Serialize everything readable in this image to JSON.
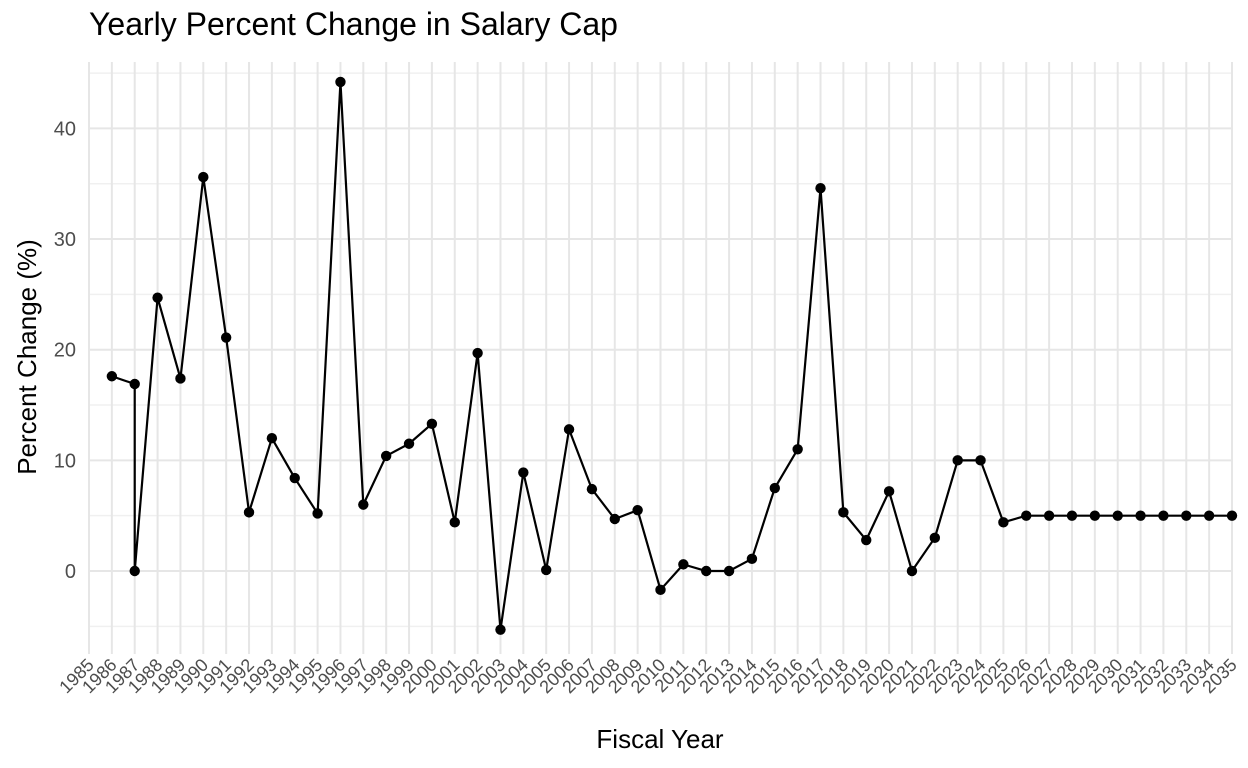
{
  "chart_data": {
    "type": "line",
    "title": "Yearly Percent Change in Salary Cap",
    "xlabel": "Fiscal Year",
    "ylabel": "Percent Change (%)",
    "x_ticks": [
      "1985",
      "1986",
      "1987",
      "1988",
      "1989",
      "1990",
      "1991",
      "1992",
      "1993",
      "1994",
      "1995",
      "1996",
      "1997",
      "1998",
      "1999",
      "2000",
      "2001",
      "2002",
      "2003",
      "2004",
      "2005",
      "2006",
      "2007",
      "2008",
      "2009",
      "2010",
      "2011",
      "2012",
      "2013",
      "2014",
      "2015",
      "2016",
      "2017",
      "2018",
      "2019",
      "2020",
      "2021",
      "2022",
      "2023",
      "2024",
      "2025",
      "2026",
      "2027",
      "2028",
      "2029",
      "2030",
      "2031",
      "2032",
      "2033",
      "2034",
      "2035"
    ],
    "y_ticks": [
      0,
      10,
      20,
      30,
      40
    ],
    "xlim": [
      1985,
      2035
    ],
    "ylim": [
      -7.5,
      46
    ],
    "grid": true,
    "line_color": "#000000",
    "series": [
      {
        "points": [
          [
            1986,
            17.6
          ],
          [
            1987,
            16.9
          ],
          [
            1987,
            0
          ],
          [
            1988,
            24.7
          ],
          [
            1989,
            17.4
          ],
          [
            1990,
            35.6
          ],
          [
            1991,
            21.1
          ],
          [
            1992,
            5.3
          ],
          [
            1993,
            12.0
          ],
          [
            1994,
            8.4
          ],
          [
            1995,
            5.2
          ],
          [
            1996,
            44.2
          ],
          [
            1997,
            6.0
          ],
          [
            1998,
            10.4
          ],
          [
            1999,
            11.5
          ],
          [
            2000,
            13.3
          ],
          [
            2001,
            4.4
          ],
          [
            2002,
            19.7
          ],
          [
            2003,
            -5.3
          ],
          [
            2004,
            8.9
          ],
          [
            2005,
            0.1
          ],
          [
            2006,
            12.8
          ],
          [
            2007,
            7.4
          ],
          [
            2008,
            4.7
          ],
          [
            2009,
            5.5
          ],
          [
            2010,
            -1.7
          ],
          [
            2011,
            0.6
          ],
          [
            2012,
            0
          ],
          [
            2013,
            0
          ],
          [
            2014,
            1.1
          ],
          [
            2015,
            7.5
          ],
          [
            2016,
            11.0
          ],
          [
            2017,
            34.6
          ],
          [
            2018,
            5.3
          ],
          [
            2019,
            2.8
          ],
          [
            2020,
            7.2
          ],
          [
            2021,
            0
          ],
          [
            2022,
            3.0
          ],
          [
            2023,
            10.0
          ],
          [
            2024,
            10.0
          ],
          [
            2025,
            4.4
          ],
          [
            2026,
            5.0
          ],
          [
            2027,
            5.0
          ],
          [
            2028,
            5.0
          ],
          [
            2029,
            5.0
          ],
          [
            2030,
            5.0
          ],
          [
            2031,
            5.0
          ],
          [
            2032,
            5.0
          ],
          [
            2033,
            5.0
          ],
          [
            2034,
            5.0
          ],
          [
            2035,
            5.0
          ]
        ]
      }
    ]
  }
}
